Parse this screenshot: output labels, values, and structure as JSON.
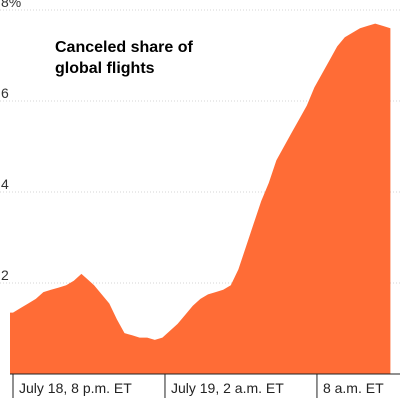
{
  "chart_data": {
    "type": "area",
    "title_lines": [
      "Canceled share of",
      "global flights"
    ],
    "xlabel": "",
    "ylabel": "",
    "ylim": [
      0,
      8
    ],
    "y_ticks": [
      {
        "value": 2,
        "label": "2"
      },
      {
        "value": 4,
        "label": "4"
      },
      {
        "value": 6,
        "label": "6"
      },
      {
        "value": 8,
        "label": "8%"
      }
    ],
    "x_ticks": [
      {
        "value": 0,
        "label": "July 18, 8 p.m. ET"
      },
      {
        "value": 6,
        "label": "July 19, 2 a.m. ET"
      },
      {
        "value": 12,
        "label": "8 a.m. ET"
      }
    ],
    "x_unit": "hours after July 18, 8 p.m. ET",
    "grid": true,
    "colors": {
      "fill": "#ff6c36",
      "grid": "#d4d4d4",
      "axis": "#222222"
    },
    "series": [
      {
        "name": "",
        "points": [
          [
            -0.2,
            1.35
          ],
          [
            0.0,
            1.35
          ],
          [
            0.3,
            1.45
          ],
          [
            0.6,
            1.55
          ],
          [
            0.9,
            1.65
          ],
          [
            1.2,
            1.8
          ],
          [
            1.5,
            1.85
          ],
          [
            1.8,
            1.9
          ],
          [
            2.1,
            1.95
          ],
          [
            2.4,
            2.05
          ],
          [
            2.7,
            2.2
          ],
          [
            2.9,
            2.1
          ],
          [
            3.2,
            1.95
          ],
          [
            3.5,
            1.75
          ],
          [
            3.8,
            1.55
          ],
          [
            4.1,
            1.2
          ],
          [
            4.4,
            0.9
          ],
          [
            4.7,
            0.85
          ],
          [
            5.0,
            0.8
          ],
          [
            5.3,
            0.8
          ],
          [
            5.6,
            0.75
          ],
          [
            5.9,
            0.8
          ],
          [
            6.2,
            0.95
          ],
          [
            6.5,
            1.1
          ],
          [
            6.8,
            1.3
          ],
          [
            7.1,
            1.5
          ],
          [
            7.4,
            1.65
          ],
          [
            7.7,
            1.75
          ],
          [
            8.0,
            1.8
          ],
          [
            8.3,
            1.85
          ],
          [
            8.6,
            1.95
          ],
          [
            8.9,
            2.3
          ],
          [
            9.2,
            2.8
          ],
          [
            9.5,
            3.3
          ],
          [
            9.8,
            3.8
          ],
          [
            10.1,
            4.2
          ],
          [
            10.4,
            4.7
          ],
          [
            10.7,
            5.0
          ],
          [
            11.0,
            5.3
          ],
          [
            11.3,
            5.6
          ],
          [
            11.6,
            5.9
          ],
          [
            11.9,
            6.3
          ],
          [
            12.2,
            6.6
          ],
          [
            12.5,
            6.9
          ],
          [
            12.8,
            7.2
          ],
          [
            13.1,
            7.4
          ],
          [
            13.4,
            7.5
          ],
          [
            13.7,
            7.6
          ],
          [
            14.0,
            7.65
          ],
          [
            14.3,
            7.7
          ],
          [
            14.6,
            7.65
          ],
          [
            14.9,
            7.6
          ]
        ]
      }
    ]
  }
}
